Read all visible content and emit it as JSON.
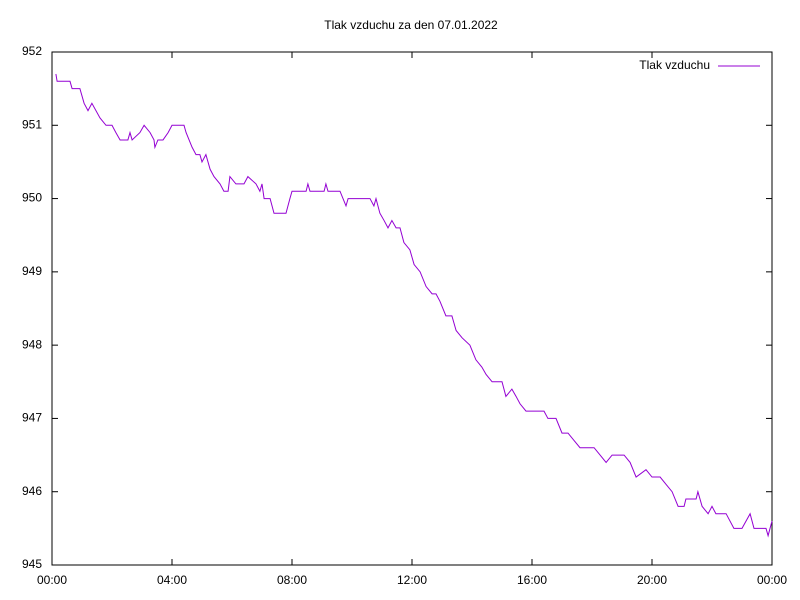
{
  "chart_data": {
    "type": "line",
    "title": "Tlak vzduchu za den 07.01.2022",
    "xlim": [
      0,
      24
    ],
    "xticks": [
      {
        "value": 0,
        "label": "00:00"
      },
      {
        "value": 4,
        "label": "04:00"
      },
      {
        "value": 8,
        "label": "08:00"
      },
      {
        "value": 12,
        "label": "12:00"
      },
      {
        "value": 16,
        "label": "16:00"
      },
      {
        "value": 20,
        "label": "20:00"
      },
      {
        "value": 24,
        "label": "00:00"
      }
    ],
    "ylim": [
      945,
      952
    ],
    "yticks": [
      945,
      946,
      947,
      948,
      949,
      950,
      951,
      952
    ],
    "legend": "top-right",
    "x": [
      0.13,
      0.17,
      0.6,
      0.67,
      0.93,
      1.07,
      1.2,
      1.33,
      1.6,
      1.8,
      2.0,
      2.13,
      2.27,
      2.53,
      2.6,
      2.67,
      2.93,
      3.07,
      3.27,
      3.4,
      3.43,
      3.53,
      3.7,
      3.87,
      4.0,
      4.4,
      4.47,
      4.67,
      4.8,
      4.93,
      5.0,
      5.13,
      5.27,
      5.4,
      5.6,
      5.73,
      5.87,
      5.93,
      6.13,
      6.4,
      6.53,
      6.8,
      6.93,
      7.0,
      7.07,
      7.27,
      7.4,
      7.8,
      7.93,
      8.0,
      8.47,
      8.53,
      8.6,
      9.07,
      9.13,
      9.2,
      9.6,
      9.7,
      9.8,
      9.87,
      10.6,
      10.73,
      10.8,
      10.93,
      11.07,
      11.2,
      11.33,
      11.47,
      11.6,
      11.73,
      11.93,
      12.07,
      12.27,
      12.47,
      12.67,
      12.8,
      12.93,
      13.13,
      13.33,
      13.47,
      13.67,
      13.93,
      14.13,
      14.33,
      14.47,
      14.67,
      15.0,
      15.13,
      15.33,
      15.47,
      15.6,
      15.8,
      16.0,
      16.4,
      16.53,
      16.8,
      17.0,
      17.2,
      17.4,
      17.6,
      18.07,
      18.27,
      18.47,
      18.67,
      19.07,
      19.27,
      19.47,
      19.8,
      20.0,
      20.27,
      20.47,
      20.67,
      20.87,
      21.07,
      21.13,
      21.47,
      21.53,
      21.67,
      21.87,
      22.0,
      22.13,
      22.47,
      22.73,
      23.0,
      23.27,
      23.4,
      23.8,
      23.87,
      24.0
    ],
    "series": [
      {
        "name": "Tlak vzduchu",
        "color": "#9400d3",
        "values": [
          951.7,
          951.6,
          951.6,
          951.5,
          951.5,
          951.3,
          951.2,
          951.3,
          951.1,
          951.0,
          951.0,
          950.9,
          950.8,
          950.8,
          950.9,
          950.8,
          950.9,
          951.0,
          950.9,
          950.8,
          950.7,
          950.8,
          950.8,
          950.9,
          951.0,
          951.0,
          950.9,
          950.7,
          950.6,
          950.6,
          950.5,
          950.6,
          950.4,
          950.3,
          950.2,
          950.1,
          950.1,
          950.3,
          950.2,
          950.2,
          950.3,
          950.2,
          950.1,
          950.2,
          950.0,
          950.0,
          949.8,
          949.8,
          950.0,
          950.1,
          950.1,
          950.2,
          950.1,
          950.1,
          950.2,
          950.1,
          950.1,
          950.0,
          949.9,
          950.0,
          950.0,
          949.9,
          950.0,
          949.8,
          949.7,
          949.6,
          949.7,
          949.6,
          949.6,
          949.4,
          949.3,
          949.1,
          949.0,
          948.8,
          948.7,
          948.7,
          948.6,
          948.4,
          948.4,
          948.2,
          948.1,
          948.0,
          947.8,
          947.7,
          947.6,
          947.5,
          947.5,
          947.3,
          947.4,
          947.3,
          947.2,
          947.1,
          947.1,
          947.1,
          947.0,
          947.0,
          946.8,
          946.8,
          946.7,
          946.6,
          946.6,
          946.5,
          946.4,
          946.5,
          946.5,
          946.4,
          946.2,
          946.3,
          946.2,
          946.2,
          946.1,
          946.0,
          945.8,
          945.8,
          945.9,
          945.9,
          946.0,
          945.8,
          945.7,
          945.8,
          945.7,
          945.7,
          945.5,
          945.5,
          945.7,
          945.5,
          945.5,
          945.4,
          945.6
        ]
      }
    ]
  }
}
